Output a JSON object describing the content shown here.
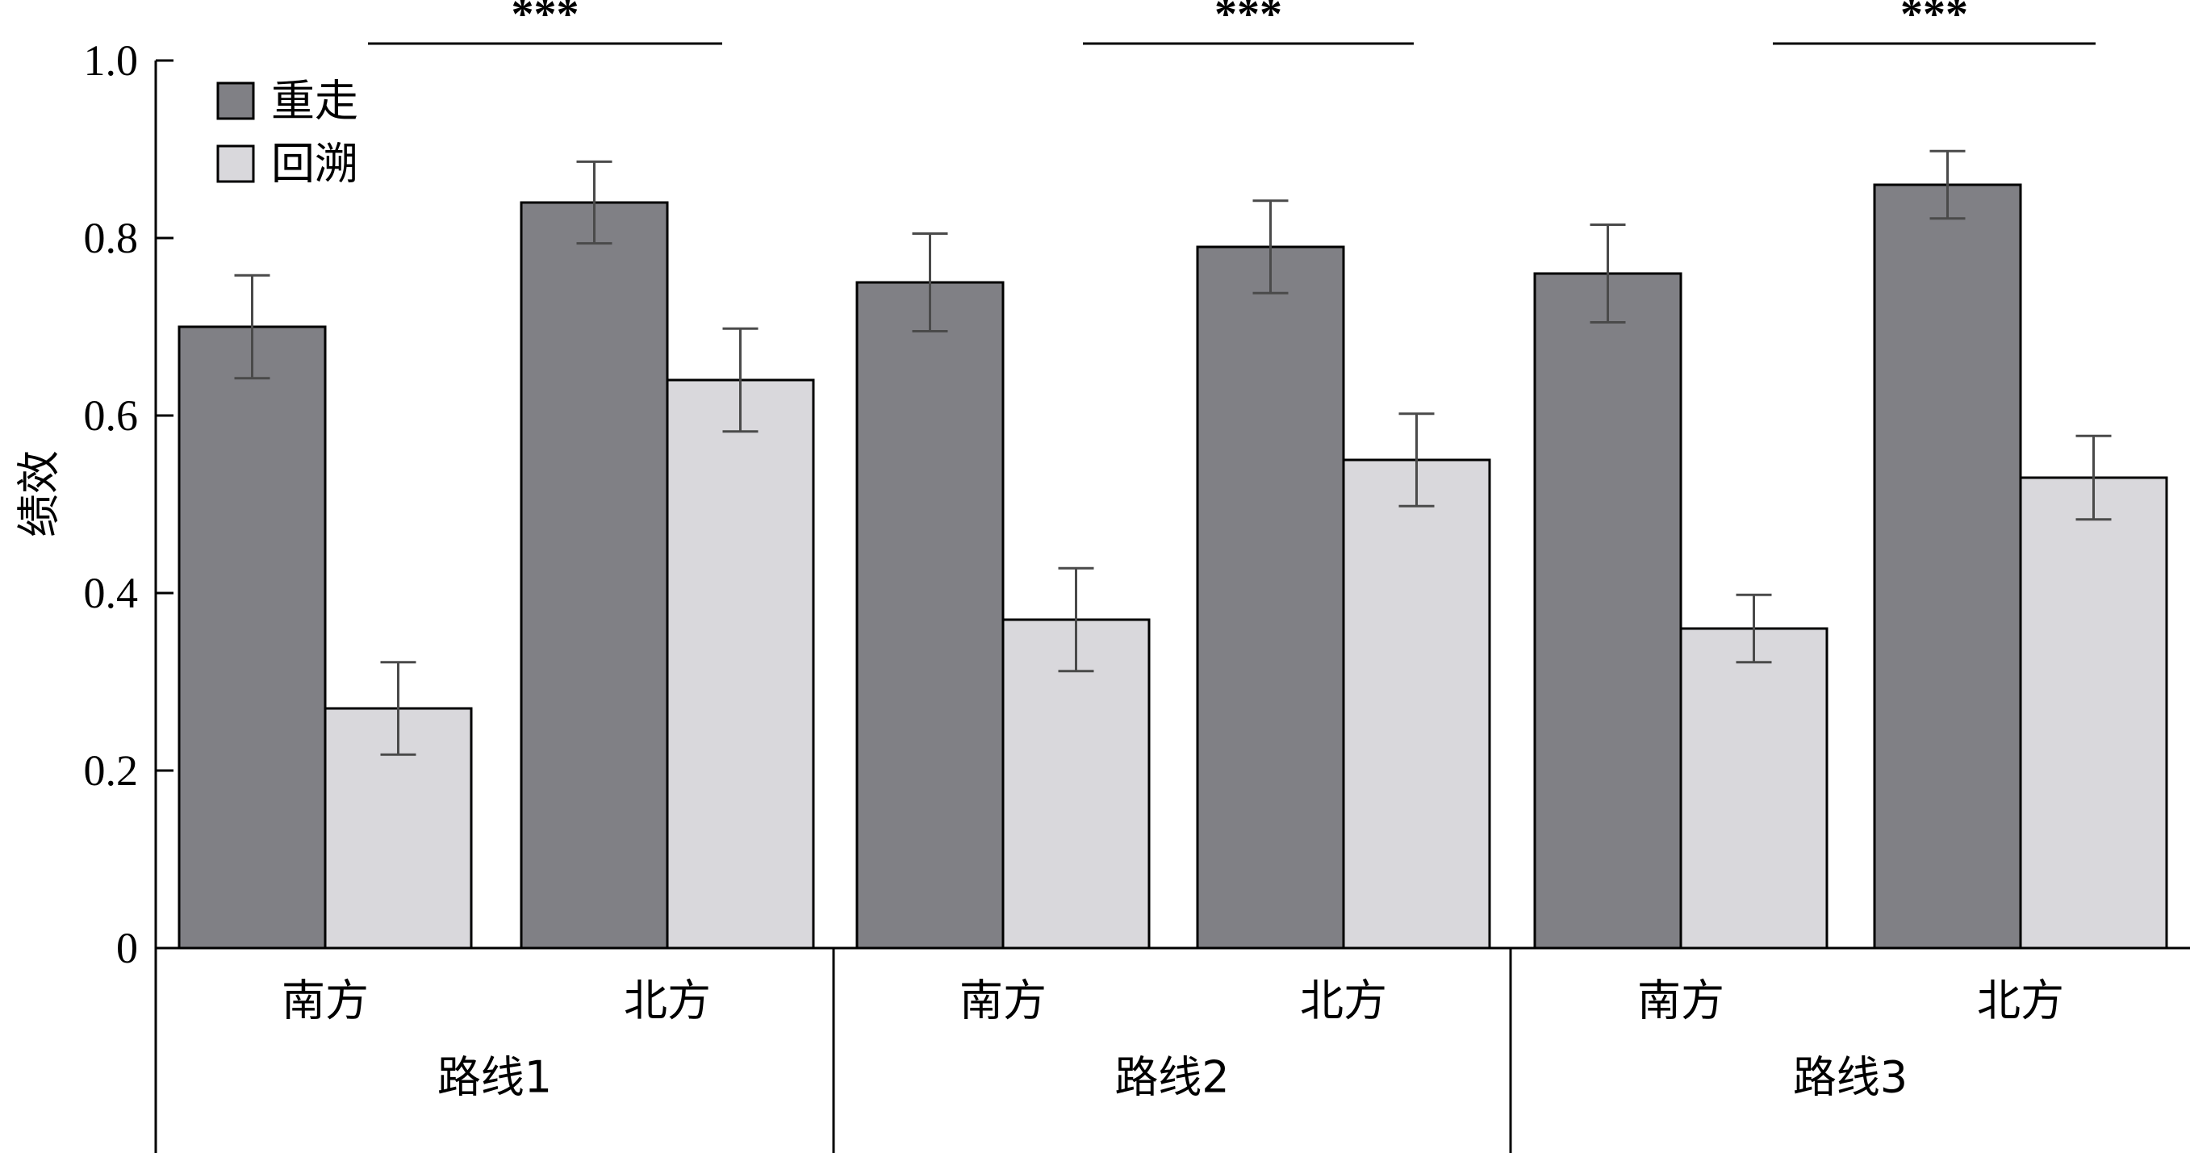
{
  "chart_data": {
    "type": "bar",
    "ylabel": "绩效",
    "ylim": [
      0,
      1.0
    ],
    "yticks": [
      {
        "value": 0,
        "label": "0"
      },
      {
        "value": 0.2,
        "label": "0.2"
      },
      {
        "value": 0.4,
        "label": "0.4"
      },
      {
        "value": 0.6,
        "label": "0.6"
      },
      {
        "value": 0.8,
        "label": "0.8"
      },
      {
        "value": 1.0,
        "label": "1.0"
      }
    ],
    "groups": [
      {
        "label": "路线1",
        "subcategories": [
          "南方",
          "北方"
        ],
        "significance": "***"
      },
      {
        "label": "路线2",
        "subcategories": [
          "南方",
          "北方"
        ],
        "significance": "***"
      },
      {
        "label": "路线3",
        "subcategories": [
          "南方",
          "北方"
        ],
        "significance": "***"
      }
    ],
    "series": [
      {
        "name": "重走",
        "color": "#808085",
        "values": [
          0.7,
          0.84,
          0.75,
          0.79,
          0.76,
          0.86
        ],
        "errors": [
          0.058,
          0.046,
          0.055,
          0.052,
          0.055,
          0.038
        ]
      },
      {
        "name": "回溯",
        "color": "#d9d8dc",
        "values": [
          0.27,
          0.64,
          0.37,
          0.55,
          0.36,
          0.53
        ],
        "errors": [
          0.052,
          0.058,
          0.058,
          0.052,
          0.038,
          0.047
        ]
      }
    ],
    "legend_position": "top-left",
    "grid": false
  }
}
